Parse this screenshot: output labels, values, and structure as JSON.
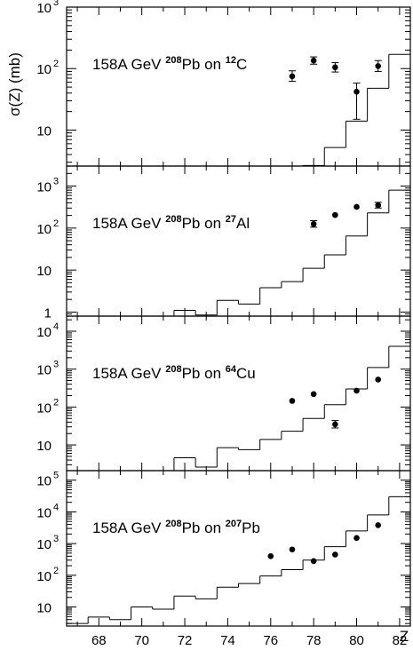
{
  "y_axis_label": "σ(Z) (mb)",
  "x_axis_label": "Z",
  "x_ticks": [
    68,
    70,
    72,
    74,
    76,
    78,
    80,
    82
  ],
  "colors": {
    "ink": "#000000",
    "background": "#ffffff"
  },
  "chart_data": [
    {
      "type": "scatter",
      "title": {
        "prefix": "158A GeV ",
        "proj_mass": "208",
        "proj": "Pb on ",
        "targ_mass": "12",
        "targ": "C"
      },
      "xlim": [
        66.5,
        82.5
      ],
      "ylim": [
        2.6,
        1000
      ],
      "log_y": true,
      "y_ticks": [
        {
          "value": 10,
          "base": "10",
          "exp": ""
        },
        {
          "value": 100,
          "base": "10",
          "exp": "2"
        },
        {
          "value": 1000,
          "base": "10",
          "exp": "3"
        }
      ],
      "series": [
        {
          "kind": "markers",
          "points": [
            {
              "x": 77,
              "y": 75,
              "err_lo": 62,
              "err_hi": 92
            },
            {
              "x": 78,
              "y": 135,
              "err_lo": 118,
              "err_hi": 155
            },
            {
              "x": 79,
              "y": 105,
              "err_lo": 88,
              "err_hi": 125
            },
            {
              "x": 80,
              "y": 42,
              "err_lo": 15,
              "err_hi": 58
            },
            {
              "x": 81,
              "y": 110,
              "err_lo": 90,
              "err_hi": 135
            }
          ]
        },
        {
          "kind": "histogram",
          "bins": [
            {
              "x": 77.5,
              "y": 2.65
            },
            {
              "x": 78.5,
              "y": 5.2
            },
            {
              "x": 79.5,
              "y": 14
            },
            {
              "x": 80.5,
              "y": 48
            },
            {
              "x": 81.5,
              "y": 170
            }
          ]
        }
      ]
    },
    {
      "type": "scatter",
      "title": {
        "prefix": "158A GeV ",
        "proj_mass": "208",
        "proj": "Pb on ",
        "targ_mass": "27",
        "targ": "Al"
      },
      "xlim": [
        66.5,
        82.5
      ],
      "ylim": [
        0.8,
        3000
      ],
      "log_y": true,
      "y_ticks": [
        {
          "value": 1,
          "base": "1",
          "exp": ""
        },
        {
          "value": 10,
          "base": "10",
          "exp": ""
        },
        {
          "value": 100,
          "base": "10",
          "exp": "2"
        },
        {
          "value": 1000,
          "base": "10",
          "exp": "3"
        }
      ],
      "series": [
        {
          "kind": "markers",
          "points": [
            {
              "x": 78,
              "y": 125,
              "err_lo": 105,
              "err_hi": 150
            },
            {
              "x": 79,
              "y": 205
            },
            {
              "x": 80,
              "y": 320
            },
            {
              "x": 81,
              "y": 350,
              "err_lo": 300,
              "err_hi": 410
            }
          ]
        },
        {
          "kind": "histogram",
          "bins": [
            {
              "x": 71.5,
              "y": 1.1
            },
            {
              "x": 72.5,
              "y": 0.85
            },
            {
              "x": 73.5,
              "y": 1.9
            },
            {
              "x": 74.5,
              "y": 1.55
            },
            {
              "x": 75.5,
              "y": 3.8
            },
            {
              "x": 76.5,
              "y": 5.3
            },
            {
              "x": 77.5,
              "y": 11
            },
            {
              "x": 78.5,
              "y": 23
            },
            {
              "x": 79.5,
              "y": 65
            },
            {
              "x": 80.5,
              "y": 230
            },
            {
              "x": 81.5,
              "y": 800
            }
          ]
        }
      ]
    },
    {
      "type": "scatter",
      "title": {
        "prefix": "158A GeV ",
        "proj_mass": "208",
        "proj": "Pb on ",
        "targ_mass": "64",
        "targ": "Cu"
      },
      "xlim": [
        66.5,
        82.5
      ],
      "ylim": [
        2.1,
        25000
      ],
      "log_y": true,
      "y_ticks": [
        {
          "value": 10,
          "base": "10",
          "exp": ""
        },
        {
          "value": 100,
          "base": "10",
          "exp": "2"
        },
        {
          "value": 1000,
          "base": "10",
          "exp": "3"
        },
        {
          "value": 10000,
          "base": "10",
          "exp": "4"
        }
      ],
      "series": [
        {
          "kind": "markers",
          "points": [
            {
              "x": 77,
              "y": 145
            },
            {
              "x": 78,
              "y": 220
            },
            {
              "x": 79,
              "y": 35,
              "err_lo": 28,
              "err_hi": 44
            },
            {
              "x": 80,
              "y": 270
            },
            {
              "x": 81,
              "y": 530
            }
          ]
        },
        {
          "kind": "histogram",
          "bins": [
            {
              "x": 71.5,
              "y": 4.6
            },
            {
              "x": 72.5,
              "y": 2.6
            },
            {
              "x": 73.5,
              "y": 8.5
            },
            {
              "x": 74.5,
              "y": 7.5
            },
            {
              "x": 75.5,
              "y": 14
            },
            {
              "x": 76.5,
              "y": 23
            },
            {
              "x": 77.5,
              "y": 50
            },
            {
              "x": 78.5,
              "y": 115
            },
            {
              "x": 79.5,
              "y": 300
            },
            {
              "x": 80.5,
              "y": 1100
            },
            {
              "x": 81.5,
              "y": 4000
            }
          ]
        }
      ]
    },
    {
      "type": "scatter",
      "title": {
        "prefix": "158A GeV ",
        "proj_mass": "208",
        "proj": "Pb on ",
        "targ_mass": "207",
        "targ": "Pb"
      },
      "xlim": [
        66.5,
        82.5
      ],
      "ylim": [
        2.5,
        200000
      ],
      "log_y": true,
      "y_ticks": [
        {
          "value": 10,
          "base": "10",
          "exp": ""
        },
        {
          "value": 100,
          "base": "10",
          "exp": "2"
        },
        {
          "value": 1000,
          "base": "10",
          "exp": "3"
        },
        {
          "value": 10000,
          "base": "10",
          "exp": "4"
        },
        {
          "value": 100000,
          "base": "10",
          "exp": "5"
        }
      ],
      "series": [
        {
          "kind": "markers",
          "points": [
            {
              "x": 76,
              "y": 400
            },
            {
              "x": 77,
              "y": 650
            },
            {
              "x": 78,
              "y": 280
            },
            {
              "x": 79,
              "y": 450
            },
            {
              "x": 80,
              "y": 1500
            },
            {
              "x": 81,
              "y": 3800
            }
          ]
        },
        {
          "kind": "histogram",
          "bins": [
            {
              "x": 66.5,
              "y": 3
            },
            {
              "x": 67.5,
              "y": 4.8
            },
            {
              "x": 68.5,
              "y": 4
            },
            {
              "x": 69.5,
              "y": 10
            },
            {
              "x": 70.5,
              "y": 8.5
            },
            {
              "x": 71.5,
              "y": 22
            },
            {
              "x": 72.5,
              "y": 18
            },
            {
              "x": 73.5,
              "y": 42
            },
            {
              "x": 74.5,
              "y": 55
            },
            {
              "x": 75.5,
              "y": 95
            },
            {
              "x": 76.5,
              "y": 150
            },
            {
              "x": 77.5,
              "y": 300
            },
            {
              "x": 78.5,
              "y": 800
            },
            {
              "x": 79.5,
              "y": 2500
            },
            {
              "x": 80.5,
              "y": 8000
            },
            {
              "x": 81.5,
              "y": 30000
            }
          ]
        }
      ]
    }
  ]
}
